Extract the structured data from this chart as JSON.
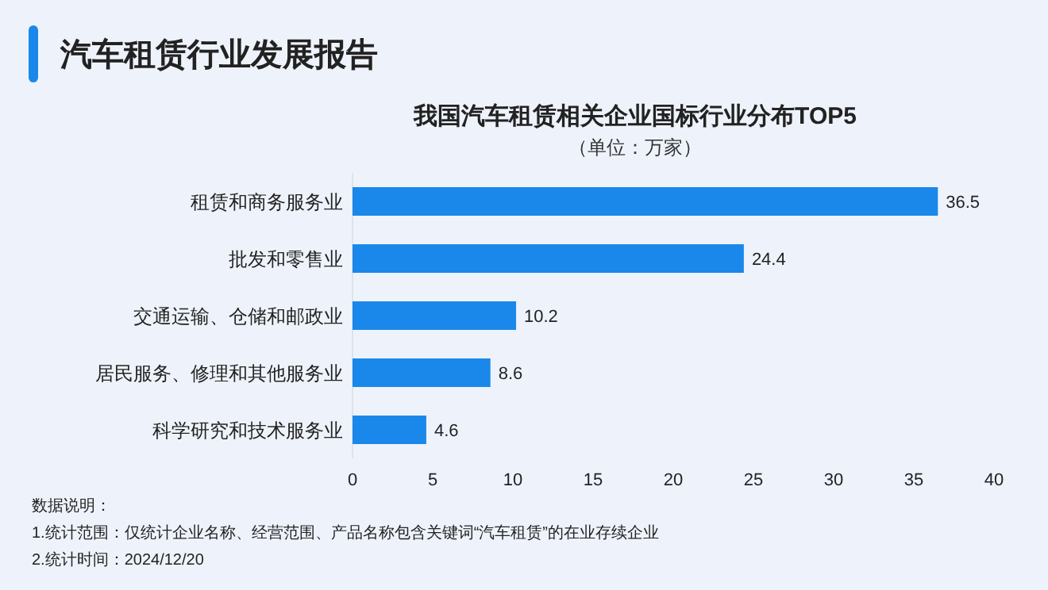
{
  "chart_data": {
    "type": "bar",
    "orientation": "horizontal",
    "title": "我国汽车租赁相关企业国标行业分布TOP5",
    "subtitle": "（单位：万家）",
    "categories": [
      "租赁和商务服务业",
      "批发和零售业",
      "交通运输、仓储和邮政业",
      "居民服务、修理和其他服务业",
      "科学研究和技术服务业"
    ],
    "values": [
      36.5,
      24.4,
      10.2,
      8.6,
      4.6
    ],
    "color": "#1a88ea",
    "xlim": [
      0,
      40
    ],
    "xticks": [
      0,
      5,
      10,
      15,
      20,
      25,
      30,
      35,
      40
    ],
    "grid": false,
    "data_labels": true,
    "annotations": [
      "汽车租赁行业发展报告",
      "数据说明：",
      "1.统计范围：仅统计企业名称、经营范围、产品名称包含关键词“汽车租赁”的在业存续企业",
      "2.统计时间：2024/12/20"
    ]
  }
}
